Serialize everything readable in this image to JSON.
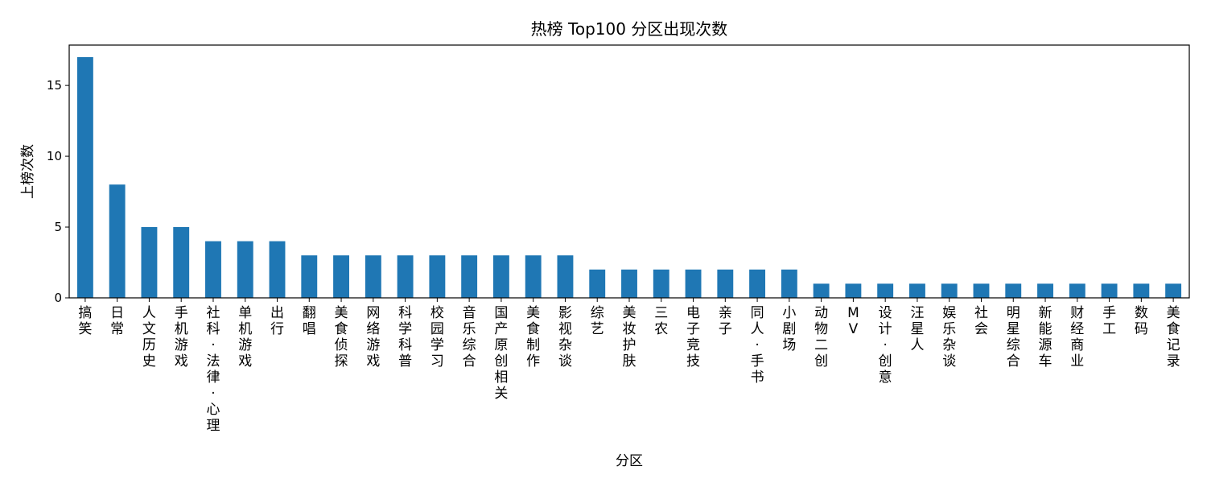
{
  "chart_data": {
    "type": "bar",
    "title": "热榜 Top100 分区出现次数",
    "xlabel": "分区",
    "ylabel": "上榜次数",
    "ylim": [
      0,
      17.85
    ],
    "yticks": [
      0,
      5,
      10,
      15
    ],
    "bar_color": "#1f77b4",
    "grid": false,
    "categories": [
      "搞笑",
      "日常",
      "人文历史",
      "手机游戏",
      "社科·法律·心理",
      "单机游戏",
      "出行",
      "翻唱",
      "美食侦探",
      "网络游戏",
      "科学科普",
      "校园学习",
      "音乐综合",
      "国产原创相关",
      "美食制作",
      "影视杂谈",
      "综艺",
      "美妆护肤",
      "三农",
      "电子竞技",
      "亲子",
      "同人·手书",
      "小剧场",
      "动物二创",
      "MV",
      "设计·创意",
      "汪星人",
      "娱乐杂谈",
      "社会",
      "明星综合",
      "新能源车",
      "财经商业",
      "手工",
      "数码",
      "美食记录"
    ],
    "values": [
      17,
      8,
      5,
      5,
      4,
      4,
      4,
      3,
      3,
      3,
      3,
      3,
      3,
      3,
      3,
      3,
      2,
      2,
      2,
      2,
      2,
      2,
      2,
      1,
      1,
      1,
      1,
      1,
      1,
      1,
      1,
      1,
      1,
      1,
      1
    ]
  }
}
